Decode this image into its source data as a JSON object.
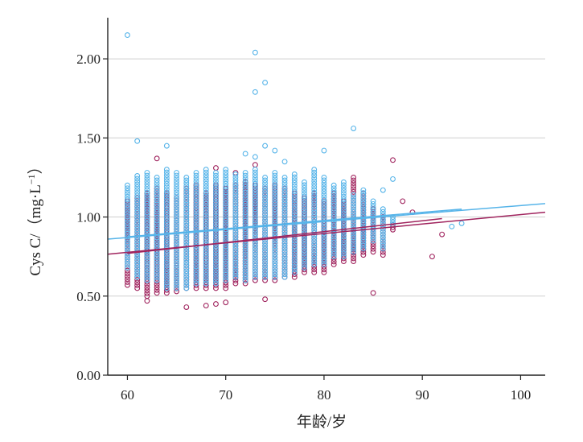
{
  "chart_data": {
    "type": "scatter",
    "xlabel": "年龄/岁",
    "ylabel_main": "Cys C/（",
    "ylabel_unit": "mg·L",
    "ylabel_exp": "−1",
    "ylabel_close": "）",
    "xlim": [
      58,
      102.5
    ],
    "ylim": [
      0,
      2.26
    ],
    "xticks": [
      60,
      70,
      80,
      90,
      100
    ],
    "xtick_labels": [
      "60",
      "70",
      "80",
      "90",
      "100"
    ],
    "yticks": [
      0,
      0.5,
      1.0,
      1.5,
      2.0
    ],
    "ytick_labels": [
      "0.00",
      "0.50",
      "1.00",
      "1.50",
      "2.00"
    ],
    "grid": "horizontal",
    "colors": {
      "series_a": "#56b4e9",
      "series_b": "#a0245e"
    },
    "series_a_outliers": [
      [
        60,
        2.15
      ],
      [
        73,
        2.04
      ],
      [
        73,
        1.79
      ],
      [
        74,
        1.85
      ],
      [
        83,
        1.56
      ],
      [
        61,
        1.48
      ],
      [
        64,
        1.45
      ],
      [
        80,
        1.42
      ],
      [
        75,
        1.42
      ],
      [
        74,
        1.45
      ],
      [
        72,
        1.4
      ],
      [
        73,
        1.38
      ],
      [
        76,
        1.35
      ],
      [
        93,
        0.94
      ],
      [
        94,
        0.96
      ],
      [
        87,
        1.24
      ],
      [
        86,
        1.17
      ]
    ],
    "series_b_outliers": [
      [
        63,
        1.37
      ],
      [
        87,
        1.36
      ],
      [
        73,
        1.33
      ],
      [
        69,
        1.31
      ],
      [
        71,
        1.28
      ],
      [
        88,
        1.1
      ],
      [
        89,
        1.03
      ],
      [
        92,
        0.89
      ],
      [
        91,
        0.75
      ],
      [
        85,
        0.52
      ],
      [
        62,
        0.47
      ],
      [
        66,
        0.43
      ],
      [
        68,
        0.44
      ],
      [
        69,
        0.45
      ],
      [
        70,
        0.46
      ],
      [
        74,
        0.48
      ]
    ],
    "series_a_band": [
      [
        60,
        0.68,
        1.2
      ],
      [
        61,
        0.62,
        1.26
      ],
      [
        62,
        0.6,
        1.28
      ],
      [
        63,
        0.6,
        1.25
      ],
      [
        64,
        0.55,
        1.3
      ],
      [
        65,
        0.55,
        1.28
      ],
      [
        66,
        0.55,
        1.25
      ],
      [
        67,
        0.58,
        1.28
      ],
      [
        68,
        0.58,
        1.3
      ],
      [
        69,
        0.58,
        1.28
      ],
      [
        70,
        0.6,
        1.3
      ],
      [
        71,
        0.62,
        1.27
      ],
      [
        72,
        0.6,
        1.28
      ],
      [
        73,
        0.62,
        1.3
      ],
      [
        74,
        0.62,
        1.25
      ],
      [
        75,
        0.62,
        1.28
      ],
      [
        76,
        0.62,
        1.25
      ],
      [
        77,
        0.65,
        1.27
      ],
      [
        78,
        0.68,
        1.22
      ],
      [
        79,
        0.7,
        1.3
      ],
      [
        80,
        0.7,
        1.25
      ],
      [
        81,
        0.75,
        1.2
      ],
      [
        82,
        0.75,
        1.22
      ],
      [
        83,
        0.78,
        1.14
      ],
      [
        84,
        0.8,
        1.17
      ],
      [
        85,
        0.85,
        1.1
      ],
      [
        86,
        0.8,
        1.05
      ],
      [
        87,
        0.95,
        1.0
      ]
    ],
    "series_b_band": [
      [
        60,
        0.57,
        1.1
      ],
      [
        61,
        0.55,
        1.12
      ],
      [
        62,
        0.5,
        1.15
      ],
      [
        63,
        0.52,
        1.18
      ],
      [
        64,
        0.52,
        1.15
      ],
      [
        65,
        0.53,
        1.12
      ],
      [
        66,
        0.55,
        1.18
      ],
      [
        67,
        0.55,
        1.2
      ],
      [
        68,
        0.55,
        1.15
      ],
      [
        69,
        0.55,
        1.2
      ],
      [
        70,
        0.55,
        1.18
      ],
      [
        71,
        0.58,
        1.2
      ],
      [
        72,
        0.58,
        1.22
      ],
      [
        73,
        0.6,
        1.2
      ],
      [
        74,
        0.6,
        1.18
      ],
      [
        75,
        0.6,
        1.2
      ],
      [
        76,
        0.62,
        1.18
      ],
      [
        77,
        0.62,
        1.15
      ],
      [
        78,
        0.65,
        1.12
      ],
      [
        79,
        0.65,
        1.15
      ],
      [
        80,
        0.65,
        1.1
      ],
      [
        81,
        0.7,
        1.15
      ],
      [
        82,
        0.72,
        1.1
      ],
      [
        83,
        0.72,
        1.25
      ],
      [
        84,
        0.76,
        1.15
      ],
      [
        85,
        0.78,
        1.05
      ],
      [
        86,
        0.76,
        1.0
      ],
      [
        87,
        0.92,
        0.95
      ]
    ],
    "fit_lines": [
      {
        "color": "#56b4e9",
        "points": [
          [
            58,
            0.86
          ],
          [
            102.5,
            1.085
          ]
        ]
      },
      {
        "color": "#56b4e9",
        "points": [
          [
            60,
            0.875
          ],
          [
            94,
            1.05
          ]
        ]
      },
      {
        "color": "#a0245e",
        "points": [
          [
            58,
            0.765
          ],
          [
            102.5,
            1.03
          ]
        ]
      },
      {
        "color": "#a0245e",
        "points": [
          [
            60,
            0.77
          ],
          [
            92,
            0.99
          ]
        ]
      }
    ]
  }
}
